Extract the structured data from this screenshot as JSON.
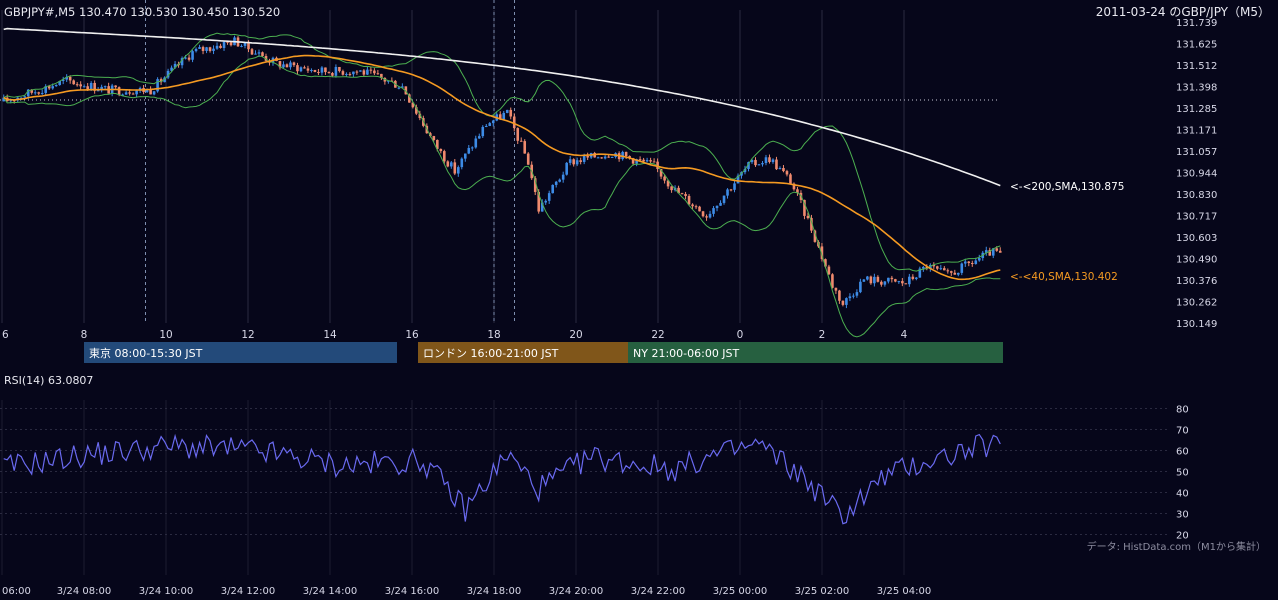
{
  "header": {
    "symbol_ohlc": "GBPJPY#,M5 130.470 130.530 130.450 130.520",
    "date_title": "2011-03-24 のGBP/JPY（M5）"
  },
  "price_axis": {
    "ticks": [
      "131.739",
      "131.625",
      "131.512",
      "131.398",
      "131.285",
      "131.171",
      "131.057",
      "130.944",
      "130.830",
      "130.717",
      "130.603",
      "130.490",
      "130.376",
      "130.262",
      "130.149"
    ]
  },
  "hour_axis": {
    "labels": [
      "6",
      "8",
      "10",
      "12",
      "14",
      "16",
      "18",
      "20",
      "22",
      "0",
      "2",
      "4"
    ]
  },
  "sessions": [
    {
      "label": "東京 08:00-15:30 JST",
      "color": "#234a7a"
    },
    {
      "label": "ロンドン 16:00-21:00 JST",
      "color": "#80561a"
    },
    {
      "label": "NY 21:00-06:00 JST",
      "color": "#266040"
    }
  ],
  "annotations": {
    "sma200": "<-<200,SMA,130.875",
    "sma40": "<-<40,SMA,130.402"
  },
  "rsi": {
    "title": "RSI(14) 63.0807",
    "ticks": [
      "80",
      "70",
      "60",
      "50",
      "40",
      "30",
      "20"
    ]
  },
  "source_note": "データ: HistData.com（M1から集計）",
  "time_axis": {
    "labels": [
      "06:00",
      "3/24 08:00",
      "3/24 10:00",
      "3/24 12:00",
      "3/24 14:00",
      "3/24 16:00",
      "3/24 18:00",
      "3/24 20:00",
      "3/24 22:00",
      "3/25 00:00",
      "3/25 02:00",
      "3/25 04:00"
    ]
  },
  "colors": {
    "up": "#3d8be6",
    "down": "#ef8a6e",
    "sma40": "#f59a22",
    "sma200": "#f0f0f0",
    "bands": "#4caf50",
    "rsi_line": "#6a6af0"
  },
  "chart_data": [
    {
      "type": "candlestick",
      "timeframe": "M5",
      "series": [
        {
          "name": "200,SMA",
          "last": 130.875
        },
        {
          "name": "40,SMA",
          "last": 130.402
        }
      ],
      "path_estimate": [
        [
          "06:00",
          131.32
        ],
        [
          "07:30",
          131.43
        ],
        [
          "08:30",
          131.38
        ],
        [
          "09:30",
          131.38
        ],
        [
          "10:30",
          131.58
        ],
        [
          "11:30",
          131.64
        ],
        [
          "12:30",
          131.52
        ],
        [
          "13:30",
          131.48
        ],
        [
          "14:30",
          131.48
        ],
        [
          "15:30",
          131.4
        ],
        [
          "16:15",
          131.1
        ],
        [
          "16:45",
          130.95
        ],
        [
          "17:30",
          131.2
        ],
        [
          "18:00",
          131.26
        ],
        [
          "18:30",
          131.0
        ],
        [
          "18:45",
          130.75
        ],
        [
          "19:30",
          131.0
        ],
        [
          "20:30",
          131.05
        ],
        [
          "21:30",
          130.98
        ],
        [
          "22:00",
          130.85
        ],
        [
          "22:45",
          130.72
        ],
        [
          "23:45",
          130.98
        ],
        [
          "00:15",
          131.02
        ],
        [
          "00:45",
          130.9
        ],
        [
          "01:15",
          130.65
        ],
        [
          "01:45",
          130.35
        ],
        [
          "02:00",
          130.25
        ],
        [
          "02:30",
          130.38
        ],
        [
          "03:30",
          130.36
        ],
        [
          "04:00",
          130.45
        ],
        [
          "04:30",
          130.4
        ],
        [
          "05:30",
          130.52
        ]
      ],
      "ylim": [
        130.149,
        131.739
      ]
    },
    {
      "type": "line",
      "title": "RSI(14) 63.0807",
      "last": 63.0807,
      "ylim": [
        15,
        85
      ],
      "x": [
        "06:00",
        "08:00",
        "10:00",
        "12:00",
        "14:00",
        "16:00",
        "17:00",
        "18:00",
        "18:45",
        "20:00",
        "22:00",
        "23:00",
        "00:00",
        "01:00",
        "02:00",
        "03:00",
        "04:00",
        "05:30"
      ],
      "values": [
        52,
        58,
        62,
        60,
        53,
        55,
        32,
        58,
        42,
        57,
        51,
        58,
        63,
        48,
        29,
        48,
        55,
        63
      ]
    }
  ]
}
